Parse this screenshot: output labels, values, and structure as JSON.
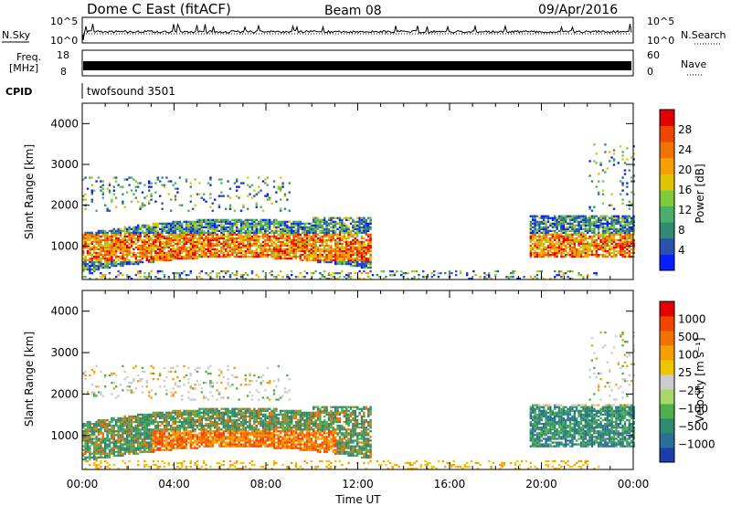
{
  "header": {
    "station": "Dome C East (fitACF)",
    "beam": "Beam 08",
    "date": "09/Apr/2016"
  },
  "panels": {
    "nsky": {
      "label": "N.Sky",
      "top_tick": "10^5",
      "bottom_tick": "10^0",
      "right_label": "N.Search"
    },
    "freq": {
      "label_line1": "Freq.",
      "label_line2": "[MHz]",
      "ticks": [
        "18",
        "8"
      ],
      "right_ticks": [
        "60",
        "0"
      ],
      "right_label": "Nave"
    },
    "cpid": {
      "label": "CPID",
      "program": "twofsound 3501"
    }
  },
  "chart_data": [
    {
      "type": "heatmap",
      "title": "",
      "ylabel": "Slant Range [km]",
      "xlabel": "",
      "ylim": [
        180,
        4500
      ],
      "xlim_hours": [
        0,
        24
      ],
      "yticks": [
        "1000",
        "2000",
        "3000",
        "4000"
      ],
      "colorbar": {
        "label": "Power [dB]",
        "ticks": [
          "4",
          "8",
          "12",
          "16",
          "20",
          "24",
          "28"
        ],
        "colors": [
          "#0a1fff",
          "#2a50b0",
          "#2f8a70",
          "#48b06a",
          "#7ecb3a",
          "#e0c400",
          "#f5a000",
          "#f27200",
          "#ef4500",
          "#e40000"
        ]
      },
      "bands": [
        {
          "t0": 0.0,
          "t1": 10.0,
          "r0": 500,
          "r1": 1550,
          "note": "strong echoes (red/orange)"
        },
        {
          "t0": 10.0,
          "t1": 12.6,
          "r0": 900,
          "r1": 1700,
          "note": "moderate echoes"
        },
        {
          "t0": 19.4,
          "t1": 24.0,
          "r0": 700,
          "r1": 1700,
          "note": "strong echoes (red/orange)"
        },
        {
          "t0": 0.0,
          "t1": 22.5,
          "r0": 180,
          "r1": 400,
          "note": "near-range scatter"
        }
      ]
    },
    {
      "type": "heatmap",
      "title": "",
      "ylabel": "Slant Range [km]",
      "xlabel": "Time UT",
      "ylim": [
        180,
        4500
      ],
      "xlim_hours": [
        0,
        24
      ],
      "yticks": [
        "1000",
        "2000",
        "3000",
        "4000"
      ],
      "xticks": [
        "00:00",
        "04:00",
        "08:00",
        "12:00",
        "16:00",
        "20:00",
        "00:00"
      ],
      "colorbar": {
        "label": "Velocity [m s⁻¹]",
        "ticks": [
          "1000",
          "500",
          "100",
          "25",
          "−25",
          "−100",
          "−500",
          "−1000"
        ],
        "colors": [
          "#1a3faa",
          "#2b6e9a",
          "#2f8a70",
          "#4db04a",
          "#a8d86a",
          "#cccccc",
          "#f2c400",
          "#f5a000",
          "#f27200",
          "#ef4500",
          "#e40000"
        ]
      }
    }
  ]
}
